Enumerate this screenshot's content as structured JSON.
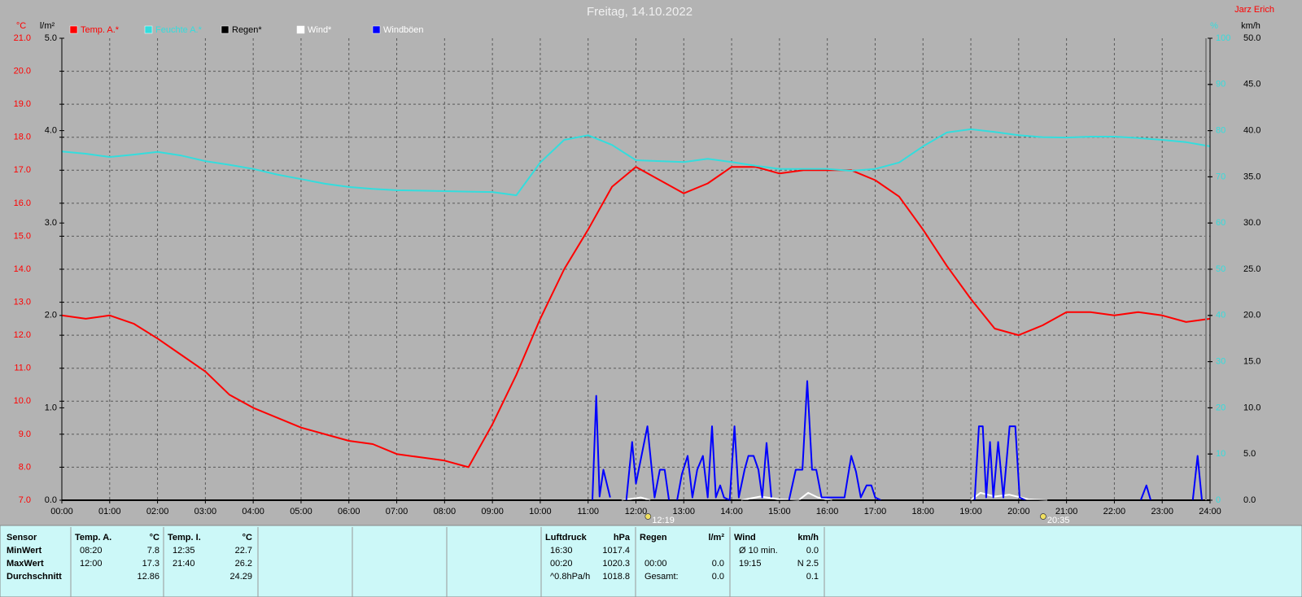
{
  "chart_data": {
    "type": "line",
    "title": "Freitag, 14.10.2022",
    "author": "Jarz Erich",
    "axis_titles": {
      "y": "°C",
      "y2": "l/m²",
      "y3": "%",
      "y4": "km/h"
    },
    "xlim": [
      0,
      24
    ],
    "xticks": [
      {
        "value": 0,
        "label": "00:00"
      },
      {
        "value": 1,
        "label": "01:00"
      },
      {
        "value": 2,
        "label": "02:00"
      },
      {
        "value": 3,
        "label": "03:00"
      },
      {
        "value": 4,
        "label": "04:00"
      },
      {
        "value": 5,
        "label": "05:00"
      },
      {
        "value": 6,
        "label": "06:00"
      },
      {
        "value": 7,
        "label": "07:00"
      },
      {
        "value": 8,
        "label": "08:00"
      },
      {
        "value": 9,
        "label": "09:00"
      },
      {
        "value": 10,
        "label": "10:00"
      },
      {
        "value": 11,
        "label": "11:00"
      },
      {
        "value": 12,
        "label": "12:00"
      },
      {
        "value": 13,
        "label": "13:00"
      },
      {
        "value": 14,
        "label": "14:00"
      },
      {
        "value": 15,
        "label": "15:00"
      },
      {
        "value": 16,
        "label": "16:00"
      },
      {
        "value": 17,
        "label": "17:00"
      },
      {
        "value": 18,
        "label": "18:00"
      },
      {
        "value": 19,
        "label": "19:00"
      },
      {
        "value": 20,
        "label": "20:00"
      },
      {
        "value": 21,
        "label": "21:00"
      },
      {
        "value": 22,
        "label": "22:00"
      },
      {
        "value": 23,
        "label": "23:00"
      },
      {
        "value": 24,
        "label": "24:00"
      }
    ],
    "ylim": [
      7,
      21
    ],
    "yticks": [
      {
        "value": 7,
        "label": "7.0"
      },
      {
        "value": 8,
        "label": "8.0"
      },
      {
        "value": 9,
        "label": "9.0"
      },
      {
        "value": 10,
        "label": "10.0"
      },
      {
        "value": 11,
        "label": "11.0"
      },
      {
        "value": 12,
        "label": "12.0"
      },
      {
        "value": 13,
        "label": "13.0"
      },
      {
        "value": 14,
        "label": "14.0"
      },
      {
        "value": 15,
        "label": "15.0"
      },
      {
        "value": 16,
        "label": "16.0"
      },
      {
        "value": 17,
        "label": "17.0"
      },
      {
        "value": 18,
        "label": "18.0"
      },
      {
        "value": 19,
        "label": "19.0"
      },
      {
        "value": 20,
        "label": "20.0"
      },
      {
        "value": 21,
        "label": "21.0"
      }
    ],
    "y2lim": [
      0,
      5
    ],
    "y2ticks": [
      {
        "value": 0,
        "label": "0.0"
      },
      {
        "value": 1,
        "label": "1.0"
      },
      {
        "value": 2,
        "label": "2.0"
      },
      {
        "value": 3,
        "label": "3.0"
      },
      {
        "value": 4,
        "label": "4.0"
      },
      {
        "value": 5,
        "label": "5.0"
      }
    ],
    "y3lim": [
      0,
      100
    ],
    "y3ticks": [
      0,
      10,
      20,
      30,
      40,
      50,
      60,
      70,
      80,
      90,
      100
    ],
    "y4lim": [
      0,
      50
    ],
    "y4ticks": [
      {
        "value": 0,
        "label": "0.0"
      },
      {
        "value": 5,
        "label": "5.0"
      },
      {
        "value": 10,
        "label": "10.0"
      },
      {
        "value": 15,
        "label": "15.0"
      },
      {
        "value": 20,
        "label": "20.0"
      },
      {
        "value": 25,
        "label": "25.0"
      },
      {
        "value": 30,
        "label": "30.0"
      },
      {
        "value": 35,
        "label": "35.0"
      },
      {
        "value": 40,
        "label": "40.0"
      },
      {
        "value": 45,
        "label": "45.0"
      },
      {
        "value": 50,
        "label": "50.0"
      }
    ],
    "grid": true,
    "x": [
      0,
      0.5,
      1,
      1.5,
      2,
      2.5,
      3,
      3.5,
      4,
      4.5,
      5,
      5.5,
      6,
      6.5,
      7,
      7.5,
      8,
      8.5,
      9,
      9.5,
      10,
      10.5,
      11,
      11.5,
      12,
      12.5,
      13,
      13.5,
      14,
      14.5,
      15,
      15.5,
      16,
      16.5,
      17,
      17.5,
      18,
      18.5,
      19,
      19.5,
      20,
      20.5,
      21,
      21.5,
      22,
      22.5,
      23,
      23.5,
      24
    ],
    "series": [
      {
        "name": "Temp. A.*",
        "color": "#ff0000",
        "axis": "y",
        "values": [
          12.6,
          12.5,
          12.6,
          12.35,
          11.9,
          11.4,
          10.9,
          10.2,
          9.8,
          9.5,
          9.2,
          9.0,
          8.8,
          8.7,
          8.4,
          8.3,
          8.2,
          8.0,
          9.3,
          10.8,
          12.5,
          14.0,
          15.2,
          16.5,
          17.1,
          16.7,
          16.3,
          16.6,
          17.1,
          17.1,
          16.9,
          17.0,
          17.0,
          17.0,
          16.7,
          16.2,
          15.2,
          14.1,
          13.1,
          12.2,
          12.0,
          12.3,
          12.7,
          12.7,
          12.6,
          12.7,
          12.6,
          12.4,
          12.5
        ]
      },
      {
        "name": "Feuchte A.*",
        "color": "#33dddd",
        "axis": "y3",
        "values": [
          75.5,
          75.0,
          74.3,
          74.8,
          75.4,
          74.6,
          73.4,
          72.6,
          71.7,
          70.5,
          69.5,
          68.5,
          67.8,
          67.4,
          67.1,
          67.0,
          66.9,
          66.8,
          66.7,
          66.0,
          73.1,
          78.0,
          79.0,
          76.9,
          73.6,
          73.4,
          73.2,
          73.9,
          73.2,
          72.4,
          71.7,
          71.7,
          71.7,
          71.3,
          71.7,
          73.1,
          76.6,
          79.6,
          80.3,
          79.7,
          79.0,
          78.6,
          78.5,
          78.7,
          78.7,
          78.4,
          78.0,
          77.5,
          76.6
        ]
      },
      {
        "name": "Regen*",
        "color": "#000000",
        "axis": "y2",
        "x": [
          0,
          24
        ],
        "values": [
          0,
          0
        ]
      },
      {
        "name": "Wind*",
        "color": "#ffffff",
        "axis": "y4",
        "x": [
          11.7,
          12.1,
          12.3,
          13.0,
          14.2,
          14.6,
          15.0,
          15.4,
          15.6,
          15.8,
          16.1,
          17.0,
          19.0,
          19.2,
          19.5,
          19.8,
          20.2,
          20.6
        ],
        "values": [
          0,
          0.3,
          0,
          null,
          0,
          0.4,
          0.1,
          0,
          0.8,
          0.3,
          0,
          null,
          0,
          0.8,
          0.4,
          0.6,
          0.1,
          0
        ]
      },
      {
        "name": "Windböen",
        "color": "#0000ff",
        "axis": "y4",
        "x": [
          11.09,
          11.17,
          11.24,
          11.32,
          11.46,
          11.6,
          11.8,
          11.92,
          12.0,
          12.24,
          12.39,
          12.5,
          12.6,
          12.69,
          12.8,
          12.86,
          12.96,
          13.08,
          13.18,
          13.28,
          13.4,
          13.5,
          13.59,
          13.67,
          13.76,
          13.84,
          13.96,
          14.06,
          14.15,
          14.27,
          14.35,
          14.46,
          14.56,
          14.64,
          14.73,
          14.83,
          15.0,
          15.2,
          15.34,
          15.48,
          15.58,
          15.68,
          15.77,
          15.88,
          16.36,
          16.5,
          16.6,
          16.7,
          16.82,
          16.92,
          17.0,
          17.12,
          18.0,
          19.08,
          19.17,
          19.25,
          19.32,
          19.4,
          19.47,
          19.57,
          19.68,
          19.81,
          19.93,
          20.02,
          20.14,
          21.0,
          22.55,
          22.67,
          22.76,
          23.0,
          23.64,
          23.74,
          23.83
        ],
        "values": [
          0,
          11.3,
          0.4,
          3.3,
          0.3,
          null,
          0,
          6.3,
          1.8,
          8.0,
          0.3,
          3.3,
          3.3,
          0,
          null,
          0,
          2.8,
          4.8,
          0.3,
          3.3,
          4.8,
          0.3,
          8.0,
          0.3,
          1.6,
          0.3,
          0,
          8.0,
          0.3,
          3.3,
          4.8,
          4.8,
          3.3,
          0.3,
          6.2,
          0.3,
          null,
          0,
          3.3,
          3.3,
          12.9,
          3.3,
          3.3,
          0.3,
          0.3,
          4.8,
          3.1,
          0.3,
          1.6,
          1.6,
          0.3,
          0,
          null,
          0,
          8.0,
          8.0,
          0.3,
          6.3,
          0.3,
          6.3,
          0.3,
          8.0,
          8.0,
          0.3,
          0,
          null,
          0,
          1.6,
          0,
          null,
          0,
          4.8,
          0
        ]
      }
    ],
    "annotations": [
      {
        "x": 12.32,
        "label": "12:19"
      },
      {
        "x": 20.58,
        "label": "20:35"
      }
    ]
  },
  "table": {
    "header": "Sensor",
    "row_labels": [
      "MinWert",
      "MaxWert",
      "Durchschnitt"
    ],
    "groups": [
      {
        "title": "Temp. A.",
        "unit": "°C",
        "rows": [
          [
            "08:20",
            "7.8"
          ],
          [
            "12:00",
            "17.3"
          ],
          [
            "12.86"
          ]
        ]
      },
      {
        "title": "Temp. I.",
        "unit": "°C",
        "rows": [
          [
            "12:35",
            "22.7"
          ],
          [
            "21:40",
            "26.2"
          ],
          [
            "24.29"
          ]
        ]
      },
      {
        "title": "Luftdruck",
        "unit": "hPa",
        "rows": [
          [
            "16:30",
            "1017.4"
          ],
          [
            "00:20",
            "1020.3"
          ],
          [
            "^0.8hPa/h",
            "1018.8"
          ]
        ]
      },
      {
        "title": "Regen",
        "unit": "l/m²",
        "rows": [
          [],
          [
            "00:00",
            "0.0"
          ],
          [
            "Gesamt:",
            "0.0"
          ]
        ]
      },
      {
        "title": "Wind",
        "unit": "km/h",
        "rows": [
          [
            "Ø 10 min.",
            "0.0"
          ],
          [
            "19:15",
            "N 2.5"
          ],
          [
            "0.1"
          ]
        ]
      }
    ]
  }
}
